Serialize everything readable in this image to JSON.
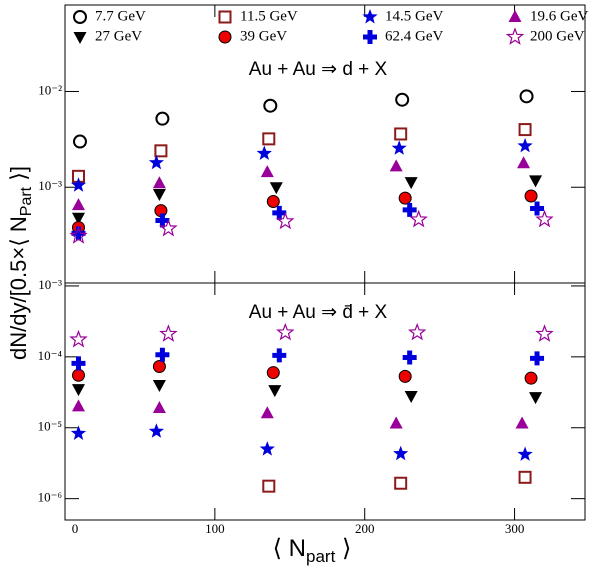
{
  "legend": [
    {
      "name": "7.7 GeV",
      "color": "#000000",
      "marker": "circle-open"
    },
    {
      "name": "11.5 GeV",
      "color": "#8b1a1a",
      "marker": "square-open"
    },
    {
      "name": "14.5 GeV",
      "color": "#0000dd",
      "marker": "star"
    },
    {
      "name": "19.6 GeV",
      "color": "#990099",
      "marker": "triangle-up"
    },
    {
      "name": "27 GeV",
      "color": "#000000",
      "marker": "triangle-down"
    },
    {
      "name": "39 GeV",
      "color": "#ee0000",
      "marker": "circle"
    },
    {
      "name": "62.4 GeV",
      "color": "#0000dd",
      "marker": "cross"
    },
    {
      "name": "200 GeV",
      "color": "#990099",
      "marker": "star-open"
    }
  ],
  "y_label": {
    "text": "dN/dy/[0.5×⟨ N",
    "sub": "Part",
    "end": " ⟩]"
  },
  "x_label": {
    "text": "⟨ N",
    "sub": "part",
    "end": " ⟩"
  },
  "xlim": [
    0,
    347
  ],
  "xticks": [
    0,
    100,
    200,
    300
  ],
  "chart_data": [
    {
      "type": "scatter",
      "annotation": "Au + Au ⇒ d + X",
      "log_y": true,
      "ylim": [
        0.0001,
        0.08
      ],
      "yticks": [
        {
          "value": 0.001,
          "label": "10⁻³"
        },
        {
          "value": 0.01,
          "label": "10⁻²"
        }
      ],
      "series": [
        {
          "x": [
            10,
            65,
            137,
            225,
            308
          ],
          "values": [
            0.003,
            0.0052,
            0.0071,
            0.0082,
            0.0089
          ]
        },
        {
          "x": [
            9,
            64,
            136,
            224,
            307
          ],
          "values": [
            0.0013,
            0.0024,
            0.0032,
            0.0036,
            0.004
          ]
        },
        {
          "x": [
            9,
            61,
            133,
            223,
            307
          ],
          "values": [
            0.00105,
            0.0018,
            0.00225,
            0.00255,
            0.0027
          ]
        },
        {
          "x": [
            9,
            63,
            135,
            221,
            306
          ],
          "values": [
            0.00065,
            0.0011,
            0.00144,
            0.00165,
            0.00178
          ]
        },
        {
          "x": [
            9,
            63,
            141,
            231,
            314
          ],
          "values": [
            0.00048,
            0.00085,
            0.001,
            0.00113,
            0.00118
          ]
        },
        {
          "x": [
            9,
            64,
            139,
            227,
            311
          ],
          "values": [
            0.00038,
            0.00057,
            0.00071,
            0.00077,
            0.00081
          ]
        },
        {
          "x": [
            9,
            65,
            143,
            230,
            315
          ],
          "values": [
            0.00033,
            0.00045,
            0.00054,
            0.00058,
            0.0006
          ]
        },
        {
          "x": [
            9,
            69,
            147,
            236,
            320
          ],
          "values": [
            0.00031,
            0.00037,
            0.00044,
            0.00046,
            0.00046
          ]
        }
      ]
    },
    {
      "type": "scatter",
      "annotation": "Au + Au ⇒ d̄ + X",
      "log_y": true,
      "ylim": [
        5e-07,
        0.0011
      ],
      "yticks": [
        {
          "value": 1e-06,
          "label": "10⁻⁶"
        },
        {
          "value": 1e-05,
          "label": "10⁻⁵"
        },
        {
          "value": 0.0001,
          "label": "10⁻⁴"
        },
        {
          "value": 0.001,
          "label": "10⁻³"
        }
      ],
      "series": [
        {
          "x": [],
          "values": []
        },
        {
          "x": [
            136,
            224,
            307
          ],
          "values": [
            1.5e-06,
            1.65e-06,
            2e-06
          ]
        },
        {
          "x": [
            9,
            61,
            135,
            224,
            307
          ],
          "values": [
            8.3e-06,
            8.9e-06,
            5e-06,
            4.3e-06,
            4.2e-06
          ]
        },
        {
          "x": [
            9,
            63,
            135,
            221,
            305
          ],
          "values": [
            2e-05,
            1.9e-05,
            1.6e-05,
            1.15e-05,
            1.15e-05
          ]
        },
        {
          "x": [
            9,
            63,
            140,
            231,
            314
          ],
          "values": [
            3.5e-05,
            4e-05,
            3.4e-05,
            2.8e-05,
            2.7e-05
          ]
        },
        {
          "x": [
            9,
            63,
            139,
            227,
            311
          ],
          "values": [
            5.5e-05,
            7.3e-05,
            6e-05,
            5.3e-05,
            5e-05
          ]
        },
        {
          "x": [
            9,
            65,
            143,
            230,
            315
          ],
          "values": [
            8.1e-05,
            0.000107,
            0.000105,
            9.8e-05,
            9.5e-05
          ]
        },
        {
          "x": [
            9,
            69,
            147,
            235,
            320
          ],
          "values": [
            0.000175,
            0.00021,
            0.00022,
            0.00022,
            0.00021
          ]
        }
      ]
    }
  ]
}
